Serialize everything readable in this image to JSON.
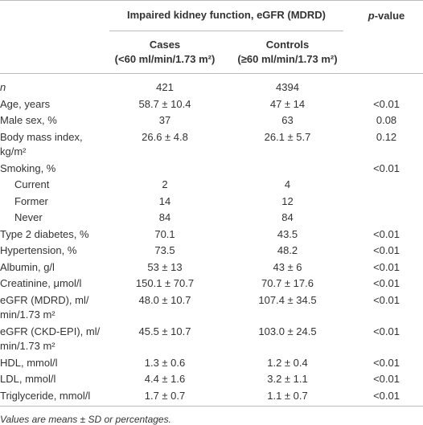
{
  "header": {
    "group_title": "Impaired kidney function, eGFR (MDRD)",
    "pvalue_italic": "p",
    "pvalue_rest": "-value",
    "cases": "Cases",
    "cases_sub": "(<60 ml/min/1.73 m²)",
    "controls": "Controls",
    "controls_sub": "(≥60 ml/min/1.73 m²)"
  },
  "table": {
    "rows": [
      [
        "n",
        "421",
        "4394",
        ""
      ],
      [
        "Age, years",
        "58.7 ± 10.4",
        "47 ± 14",
        "<0.01"
      ],
      [
        "Male sex, %",
        "37",
        "63",
        "0.08"
      ],
      [
        "Body mass index,\nkg/m²",
        "26.6 ± 4.8",
        "26.1 ± 5.7",
        "0.12"
      ],
      [
        "Smoking, %",
        "",
        "",
        "<0.01"
      ],
      [
        "Current",
        "2",
        "4",
        ""
      ],
      [
        "Former",
        "14",
        "12",
        ""
      ],
      [
        "Never",
        "84",
        "84",
        ""
      ],
      [
        "Type 2 diabetes, %",
        "70.1",
        "43.5",
        "<0.01"
      ],
      [
        "Hypertension, %",
        "73.5",
        "48.2",
        "<0.01"
      ],
      [
        "Albumin, g/l",
        "53 ± 13",
        "43 ± 6",
        "<0.01"
      ],
      [
        "Creatinine, μmol/l",
        "150.1 ± 70.7",
        "70.7 ± 17.6",
        "<0.01"
      ],
      [
        "eGFR (MDRD), ml/\nmin/1.73 m²",
        "48.0 ± 10.7",
        "107.4 ± 34.5",
        "<0.01"
      ],
      [
        "eGFR (CKD-EPI), ml/\nmin/1.73 m²",
        "45.5 ± 10.7",
        "103.0 ± 24.5",
        "<0.01"
      ],
      [
        "HDL, mmol/l",
        "1.3 ± 0.6",
        "1.2 ± 0.4",
        "<0.01"
      ],
      [
        "LDL, mmol/l",
        "4.4 ± 1.6",
        "3.2 ± 1.1",
        "<0.01"
      ],
      [
        "Triglyceride, mmol/l",
        "1.7 ± 0.7",
        "1.1 ± 0.7",
        "<0.01"
      ]
    ]
  },
  "footnote": "Values are means ± SD or percentages."
}
